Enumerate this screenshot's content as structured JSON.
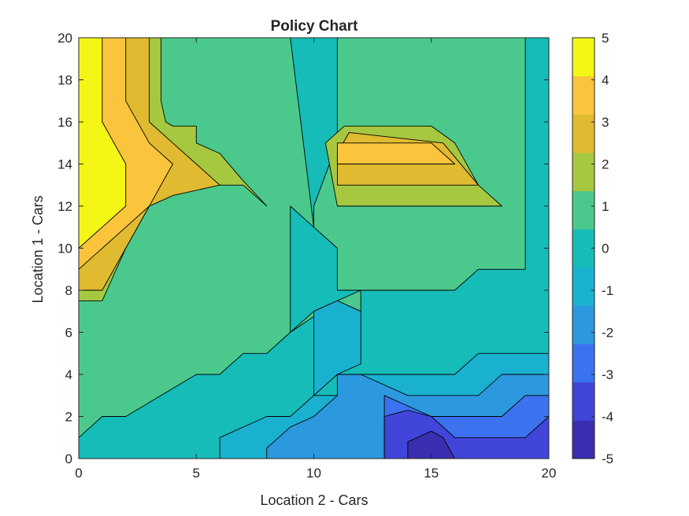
{
  "chart_data": {
    "type": "contour",
    "title": "Policy Chart",
    "xlabel": "Location 2 - Cars",
    "ylabel": "Location 1 - Cars",
    "xlim": [
      0,
      20
    ],
    "ylim": [
      0,
      20
    ],
    "x_ticks": [
      "0",
      "5",
      "10",
      "15",
      "20"
    ],
    "y_ticks": [
      "0",
      "2",
      "4",
      "6",
      "8",
      "10",
      "12",
      "14",
      "16",
      "18",
      "20"
    ],
    "colorbar": {
      "range": [
        -5,
        5
      ],
      "ticks": [
        "5",
        "4",
        "3",
        "2",
        "1",
        "0",
        "-1",
        "-2",
        "-3",
        "-4",
        "-5"
      ]
    },
    "level_colors": {
      "-5": "#3a2eb1",
      "-4": "#4145d9",
      "-3": "#3b72f0",
      "-2": "#2c98de",
      "-1": "#1ab1d0",
      "0": "#15bcb8",
      "1": "#4bc98d",
      "2": "#a6c840",
      "3": "#e0ba30",
      "4": "#fac43c",
      "5": "#f4f615"
    },
    "regions": [
      {
        "level": 0,
        "polygon": [
          [
            0,
            0
          ],
          [
            20,
            0
          ],
          [
            20,
            20
          ],
          [
            0,
            20
          ]
        ]
      },
      {
        "level": 1,
        "polygon": [
          [
            0,
            1
          ],
          [
            1,
            2
          ],
          [
            2,
            2
          ],
          [
            5,
            4
          ],
          [
            6,
            4
          ],
          [
            7,
            5
          ],
          [
            8,
            5
          ],
          [
            9,
            6
          ],
          [
            10,
            7
          ],
          [
            11,
            7.5
          ],
          [
            12,
            7
          ],
          [
            12,
            8
          ],
          [
            16,
            8
          ],
          [
            17,
            9
          ],
          [
            19,
            9
          ],
          [
            19,
            20
          ],
          [
            11,
            20
          ],
          [
            11,
            18
          ],
          [
            11,
            15
          ],
          [
            10,
            12
          ],
          [
            10,
            11
          ],
          [
            11,
            10
          ],
          [
            11,
            8
          ],
          [
            12,
            8
          ],
          [
            11,
            7.5
          ],
          [
            9,
            6
          ],
          [
            9,
            12
          ],
          [
            10,
            11
          ],
          [
            9,
            20
          ],
          [
            0,
            20
          ]
        ]
      },
      {
        "level": 2,
        "polygon": [
          [
            0,
            7.5
          ],
          [
            1,
            7.5
          ],
          [
            2,
            10
          ],
          [
            3,
            12
          ],
          [
            4,
            12.5
          ],
          [
            5,
            13
          ],
          [
            7,
            13
          ],
          [
            8,
            12
          ],
          [
            7,
            13.2
          ],
          [
            6,
            14.5
          ],
          [
            5,
            15
          ],
          [
            5,
            15.8
          ],
          [
            4,
            15.8
          ],
          [
            3.7,
            16
          ],
          [
            3.5,
            17
          ],
          [
            3.5,
            20
          ],
          [
            0,
            20
          ]
        ]
      },
      {
        "level": 3,
        "polygon": [
          [
            0,
            8
          ],
          [
            1,
            8
          ],
          [
            2,
            10
          ],
          [
            3,
            12
          ],
          [
            4,
            12.5
          ],
          [
            6,
            13
          ],
          [
            5,
            14
          ],
          [
            4,
            15
          ],
          [
            3,
            16
          ],
          [
            3,
            20
          ],
          [
            0,
            20
          ]
        ]
      },
      {
        "level": 4,
        "polygon": [
          [
            0,
            9
          ],
          [
            2,
            11
          ],
          [
            3,
            12
          ],
          [
            4,
            14
          ],
          [
            3,
            15
          ],
          [
            2,
            17
          ],
          [
            2,
            20
          ],
          [
            0,
            20
          ]
        ]
      },
      {
        "level": 5,
        "polygon": [
          [
            0,
            10
          ],
          [
            1,
            11
          ],
          [
            2,
            12
          ],
          [
            2,
            14
          ],
          [
            1,
            16
          ],
          [
            1,
            20
          ],
          [
            0,
            20
          ]
        ]
      },
      {
        "level": 2,
        "polygon": [
          [
            11,
            12
          ],
          [
            18,
            12
          ],
          [
            17,
            13
          ],
          [
            16,
            15
          ],
          [
            15,
            15.8
          ],
          [
            11.3,
            15.8
          ],
          [
            10.5,
            15
          ]
        ]
      },
      {
        "level": 3,
        "polygon": [
          [
            11,
            13
          ],
          [
            17,
            13
          ],
          [
            15.5,
            15
          ],
          [
            11.5,
            15.5
          ],
          [
            11,
            14.5
          ]
        ]
      },
      {
        "level": 4,
        "polygon": [
          [
            11,
            14
          ],
          [
            16,
            14
          ],
          [
            15,
            15
          ],
          [
            11,
            15
          ]
        ]
      },
      {
        "level": -1,
        "polygon": [
          [
            6,
            0
          ],
          [
            20,
            0
          ],
          [
            20,
            5
          ],
          [
            17,
            5
          ],
          [
            16,
            4
          ],
          [
            11,
            4
          ],
          [
            11,
            3.5
          ],
          [
            12,
            3
          ],
          [
            10,
            3
          ],
          [
            10,
            7
          ],
          [
            11,
            7.5
          ],
          [
            12,
            7
          ],
          [
            12,
            4.5
          ],
          [
            11,
            4
          ],
          [
            9,
            2
          ],
          [
            8,
            2
          ],
          [
            6,
            1
          ]
        ]
      },
      {
        "level": -2,
        "polygon": [
          [
            8,
            0
          ],
          [
            20,
            0
          ],
          [
            20,
            4
          ],
          [
            18,
            4
          ],
          [
            17,
            3
          ],
          [
            14,
            3
          ],
          [
            12,
            4
          ],
          [
            11,
            4
          ],
          [
            11,
            3
          ],
          [
            10,
            2
          ],
          [
            9,
            1.5
          ],
          [
            8,
            0.5
          ]
        ]
      },
      {
        "level": -3,
        "polygon": [
          [
            13,
            0
          ],
          [
            20,
            0
          ],
          [
            20,
            3
          ],
          [
            19,
            3
          ],
          [
            18,
            2
          ],
          [
            15,
            2
          ],
          [
            14,
            2.5
          ],
          [
            13,
            3
          ],
          [
            13,
            2
          ]
        ]
      },
      {
        "level": -4,
        "polygon": [
          [
            13,
            0
          ],
          [
            20,
            0
          ],
          [
            20,
            2
          ],
          [
            19,
            1
          ],
          [
            16,
            1
          ],
          [
            15,
            2
          ],
          [
            14,
            2.3
          ],
          [
            13,
            2
          ]
        ]
      },
      {
        "level": -5,
        "polygon": [
          [
            14,
            0
          ],
          [
            16,
            0
          ],
          [
            15.5,
            1
          ],
          [
            15,
            1.3
          ],
          [
            14,
            0.8
          ]
        ]
      }
    ]
  }
}
